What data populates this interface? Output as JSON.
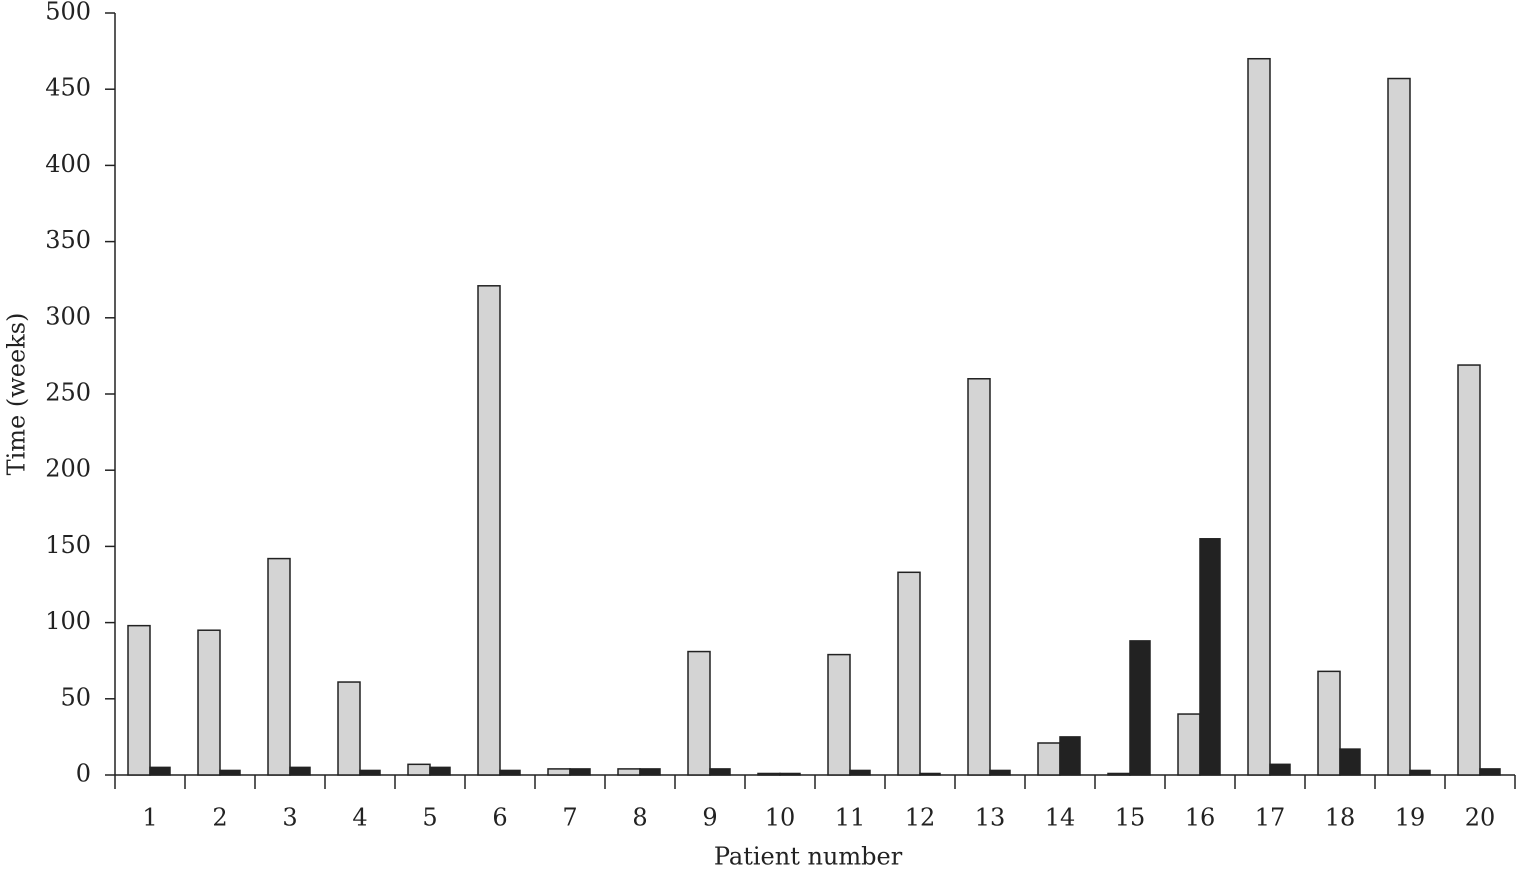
{
  "chart_data": {
    "type": "bar",
    "y_label": "Time (weeks)",
    "x_label": "Patient number",
    "categories": [
      "1",
      "2",
      "3",
      "4",
      "5",
      "6",
      "7",
      "8",
      "9",
      "10",
      "11",
      "12",
      "13",
      "14",
      "15",
      "16",
      "17",
      "18",
      "19",
      "20"
    ],
    "series": [
      {
        "color": "#d4d4d4",
        "values": [
          98,
          95,
          142,
          61,
          7,
          321,
          4,
          4,
          81,
          1,
          79,
          133,
          260,
          21,
          1,
          40,
          470,
          68,
          457,
          269
        ]
      },
      {
        "color": "#222222",
        "values": [
          5,
          3,
          5,
          3,
          5,
          3,
          4,
          4,
          4,
          1,
          3,
          1,
          3,
          25,
          88,
          155,
          7,
          17,
          3,
          4
        ]
      }
    ],
    "ylim": [
      0,
      500
    ],
    "yticks": [
      0,
      50,
      100,
      150,
      200,
      250,
      300,
      350,
      400,
      450,
      500
    ]
  }
}
